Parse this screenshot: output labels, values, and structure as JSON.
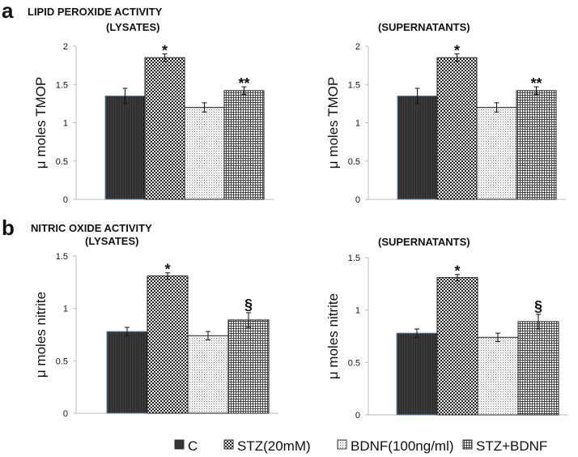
{
  "legend": [
    "C",
    "STZ(20mM)",
    "BDNF(100ng/ml)",
    "STZ+BDNF"
  ],
  "colors": {
    "C": "#3a3a3a",
    "border": "#222222",
    "axis": "#bbbbbb",
    "C_border": "#6688aa"
  },
  "panels": [
    {
      "label": "a",
      "title": "LIPID PEROXIDE ACTIVITY"
    },
    {
      "label": "b",
      "title": "NITRIC OXIDE ACTIVITY"
    }
  ],
  "chart_data": [
    {
      "type": "bar",
      "panel": "a",
      "subtitle": "(LYSATES)",
      "ylabel": "μ moles TMOP",
      "ylim": [
        0,
        2
      ],
      "yticks": [
        "0",
        "0.5",
        "1",
        "1.5",
        "2"
      ],
      "tickvals": [
        0,
        0.5,
        1,
        1.5,
        2
      ],
      "categories": [
        "C",
        "STZ(20mM)",
        "BDNF(100ng/ml)",
        "STZ+BDNF"
      ],
      "values": [
        1.35,
        1.85,
        1.2,
        1.42
      ],
      "errors": [
        0.1,
        0.05,
        0.06,
        0.05
      ],
      "annotations": [
        "",
        "*",
        "",
        "**"
      ]
    },
    {
      "type": "bar",
      "panel": "a",
      "subtitle": "(SUPERNATANTS)",
      "ylabel": "μ moles TMOP",
      "ylim": [
        0,
        2
      ],
      "yticks": [
        "0",
        "0.5",
        "1",
        "1.5",
        "2"
      ],
      "tickvals": [
        0,
        0.5,
        1,
        1.5,
        2
      ],
      "categories": [
        "C",
        "STZ(20mM)",
        "BDNF(100ng/ml)",
        "STZ+BDNF"
      ],
      "values": [
        1.35,
        1.85,
        1.2,
        1.42
      ],
      "errors": [
        0.1,
        0.05,
        0.06,
        0.05
      ],
      "annotations": [
        "",
        "*",
        "",
        "**"
      ]
    },
    {
      "type": "bar",
      "panel": "b",
      "subtitle": "(LYSATES)",
      "ylabel": "μ moles nitrite",
      "ylim": [
        0,
        1.5
      ],
      "yticks": [
        "0",
        "0.5",
        "1",
        "1.5"
      ],
      "tickvals": [
        0,
        0.5,
        1,
        1.5
      ],
      "categories": [
        "C",
        "STZ(20mM)",
        "BDNF(100ng/ml)",
        "STZ+BDNF"
      ],
      "values": [
        0.78,
        1.31,
        0.74,
        0.89
      ],
      "errors": [
        0.04,
        0.03,
        0.04,
        0.07
      ],
      "annotations": [
        "",
        "*",
        "",
        "§"
      ]
    },
    {
      "type": "bar",
      "panel": "b",
      "subtitle": "(SUPERNATANTS)",
      "ylabel": "μ moles nitrite",
      "ylim": [
        0,
        1.5
      ],
      "yticks": [
        "0",
        "0.5",
        "1",
        "1.5"
      ],
      "tickvals": [
        0,
        0.5,
        1,
        1.5
      ],
      "categories": [
        "C",
        "STZ(20mM)",
        "BDNF(100ng/ml)",
        "STZ+BDNF"
      ],
      "values": [
        0.78,
        1.31,
        0.74,
        0.89
      ],
      "errors": [
        0.04,
        0.03,
        0.04,
        0.07
      ],
      "annotations": [
        "",
        "*",
        "",
        "§"
      ]
    }
  ]
}
